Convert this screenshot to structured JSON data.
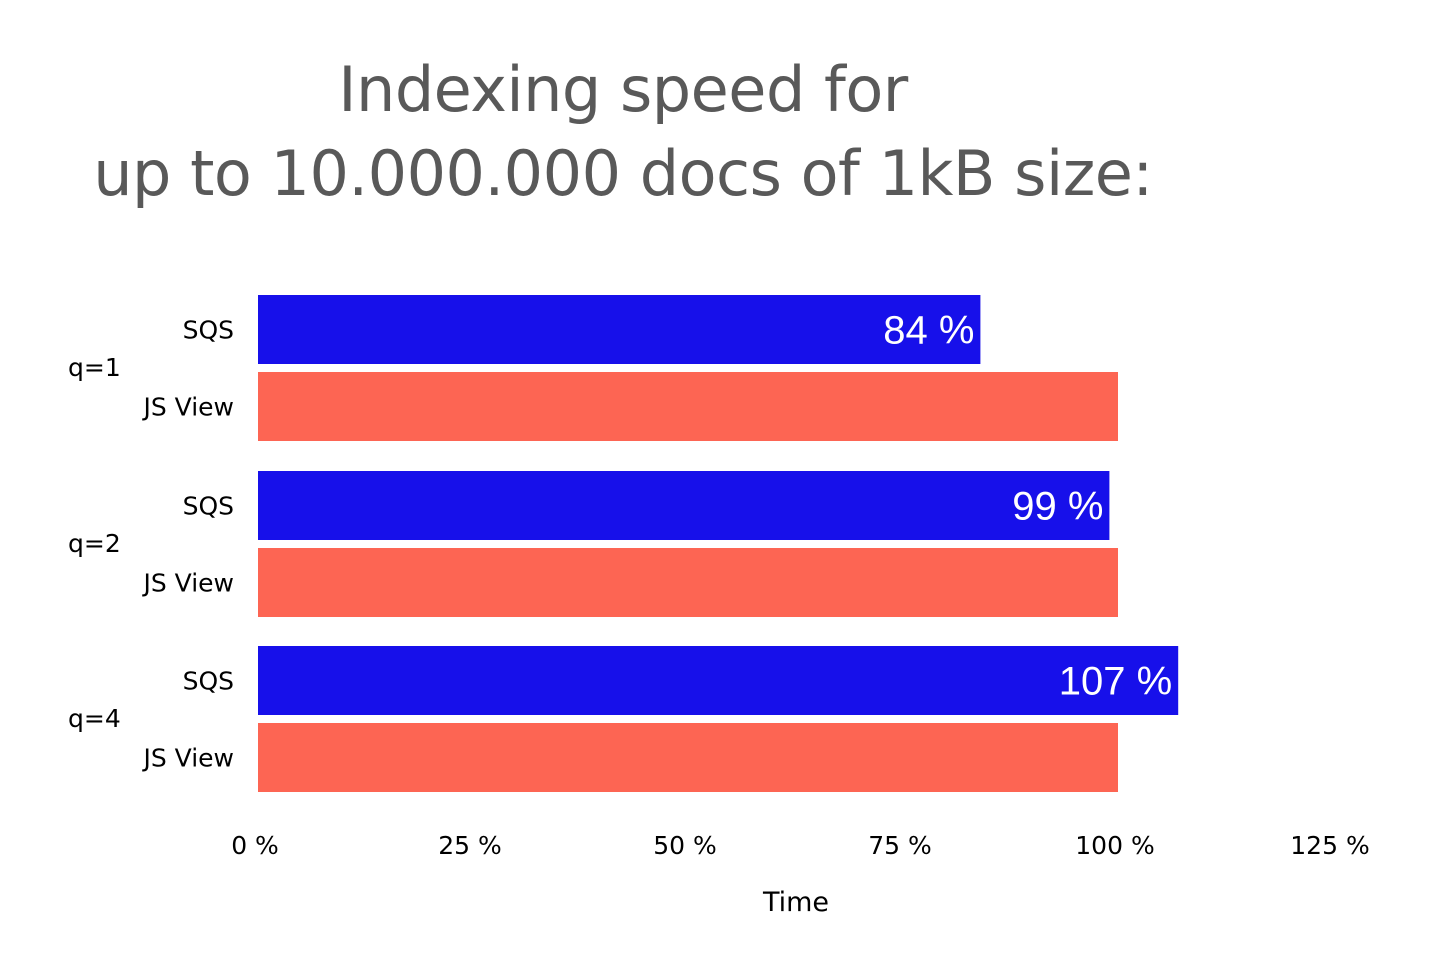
{
  "chart_data": {
    "type": "bar",
    "orientation": "horizontal",
    "title_lines": [
      "Indexing speed for",
      "up to 10.000.000 docs of 1kB size:"
    ],
    "xlabel": "Time",
    "ylabel": "",
    "xlim": [
      0,
      125
    ],
    "x_ticks": [
      "0 %",
      "25 %",
      "50 %",
      "75 %",
      "100 %",
      "125 %"
    ],
    "x_tick_values": [
      0,
      25,
      50,
      75,
      100,
      125
    ],
    "grid": false,
    "legend": "none",
    "groups": [
      {
        "label": "q=1",
        "bars": [
          {
            "category": "SQS",
            "value": 84,
            "data_label": "84 %",
            "color": "#1710ea"
          },
          {
            "category": "JS View",
            "value": 100,
            "data_label": "",
            "color": "#fd6553"
          }
        ]
      },
      {
        "label": "q=2",
        "bars": [
          {
            "category": "SQS",
            "value": 99,
            "data_label": "99 %",
            "color": "#1710ea"
          },
          {
            "category": "JS View",
            "value": 100,
            "data_label": "",
            "color": "#fd6553"
          }
        ]
      },
      {
        "label": "q=4",
        "bars": [
          {
            "category": "SQS",
            "value": 107,
            "data_label": "107 %",
            "color": "#1710ea"
          },
          {
            "category": "JS View",
            "value": 100,
            "data_label": "",
            "color": "#fd6553"
          }
        ]
      }
    ]
  }
}
